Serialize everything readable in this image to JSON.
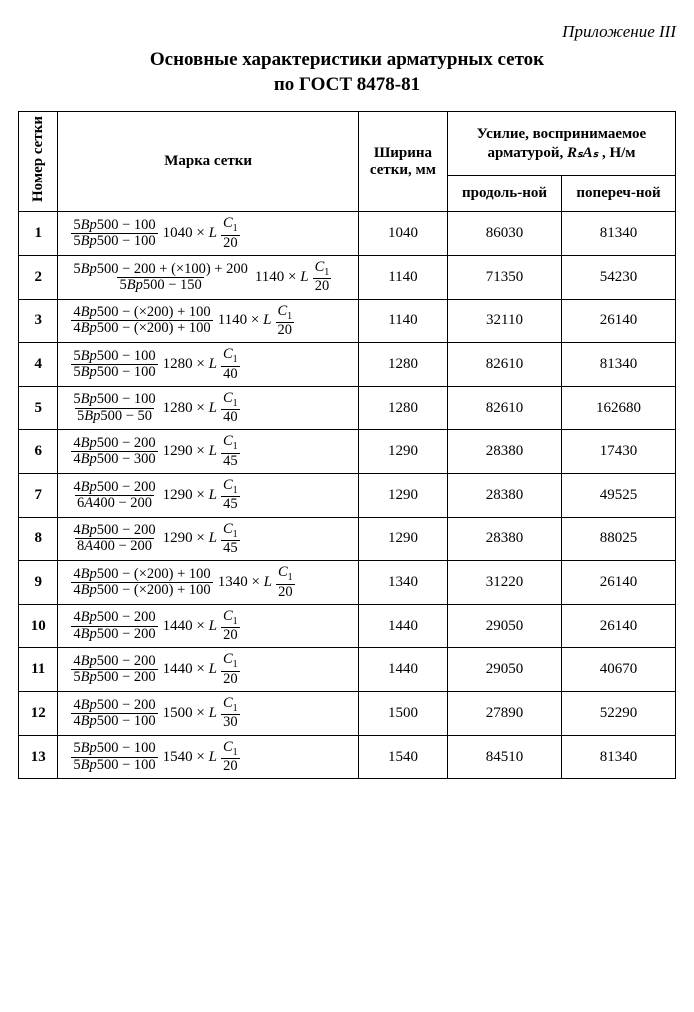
{
  "appendix": "Приложение III",
  "title_l1": "Основные характеристики арматурных сеток",
  "title_l2": "по ГОСТ 8478-81",
  "headers": {
    "num": "Номер сетки",
    "mark": "Марка сетки",
    "width": "Ширина сетки, мм",
    "force_group_pre": "Усилие, воспринимаемое арматурой, ",
    "force_group_sym": "RₛAₛ",
    "force_group_post": " , Н/м",
    "long": "продоль-ной",
    "trans": "попереч-ной"
  },
  "c1_num": "C",
  "c1_sub": "1",
  "rows": [
    {
      "n": "1",
      "top": "5Bp500 − 100",
      "bot": "5Bp500 − 100",
      "mid": "1040 × L",
      "den": "20",
      "w": "1040",
      "f1": "86030",
      "f2": "81340"
    },
    {
      "n": "2",
      "top": "5Bp500 − 200 + (×100) + 200",
      "bot": "5Bp500 − 150",
      "mid": "1140 × L",
      "den": "20",
      "w": "1140",
      "f1": "71350",
      "f2": "54230"
    },
    {
      "n": "3",
      "top": "4Bp500 − (×200) + 100",
      "bot": "4Bp500 − (×200) + 100",
      "mid": "1140 × L",
      "den": "20",
      "w": "1140",
      "f1": "32110",
      "f2": "26140"
    },
    {
      "n": "4",
      "top": "5Bp500 − 100",
      "bot": "5Bp500 − 100",
      "mid": "1280 × L",
      "den": "40",
      "w": "1280",
      "f1": "82610",
      "f2": "81340"
    },
    {
      "n": "5",
      "top": "5Bp500 − 100",
      "bot": "5Bp500 − 50",
      "mid": "1280 × L",
      "den": "40",
      "w": "1280",
      "f1": "82610",
      "f2": "162680"
    },
    {
      "n": "6",
      "top": "4Bp500 − 200",
      "bot": "4Bp500 − 300",
      "mid": "1290 × L",
      "den": "45",
      "w": "1290",
      "f1": "28380",
      "f2": "17430"
    },
    {
      "n": "7",
      "top": "4Bp500 − 200",
      "bot": "6A400 − 200",
      "mid": "1290 × L",
      "den": "45",
      "w": "1290",
      "f1": "28380",
      "f2": "49525"
    },
    {
      "n": "8",
      "top": "4Bp500 − 200",
      "bot": "8A400 − 200",
      "mid": "1290 × L",
      "den": "45",
      "w": "1290",
      "f1": "28380",
      "f2": "88025"
    },
    {
      "n": "9",
      "top": "4Bp500 − (×200) + 100",
      "bot": "4Bp500 − (×200) + 100",
      "mid": "1340 × L",
      "den": "20",
      "w": "1340",
      "f1": "31220",
      "f2": "26140"
    },
    {
      "n": "10",
      "top": "4Bp500 − 200",
      "bot": "4Bp500 − 200",
      "mid": "1440 × L",
      "den": "20",
      "w": "1440",
      "f1": "29050",
      "f2": "26140"
    },
    {
      "n": "11",
      "top": "4Bp500 − 200",
      "bot": "5Bp500 − 200",
      "mid": "1440 × L",
      "den": "20",
      "w": "1440",
      "f1": "29050",
      "f2": "40670"
    },
    {
      "n": "12",
      "top": "4Bp500 − 200",
      "bot": "4Bp500 − 100",
      "mid": "1500 × L",
      "den": "30",
      "w": "1500",
      "f1": "27890",
      "f2": "52290"
    },
    {
      "n": "13",
      "top": "5Bp500 − 100",
      "bot": "5Bp500 − 100",
      "mid": "1540 × L",
      "den": "20",
      "w": "1540",
      "f1": "84510",
      "f2": "81340"
    }
  ]
}
